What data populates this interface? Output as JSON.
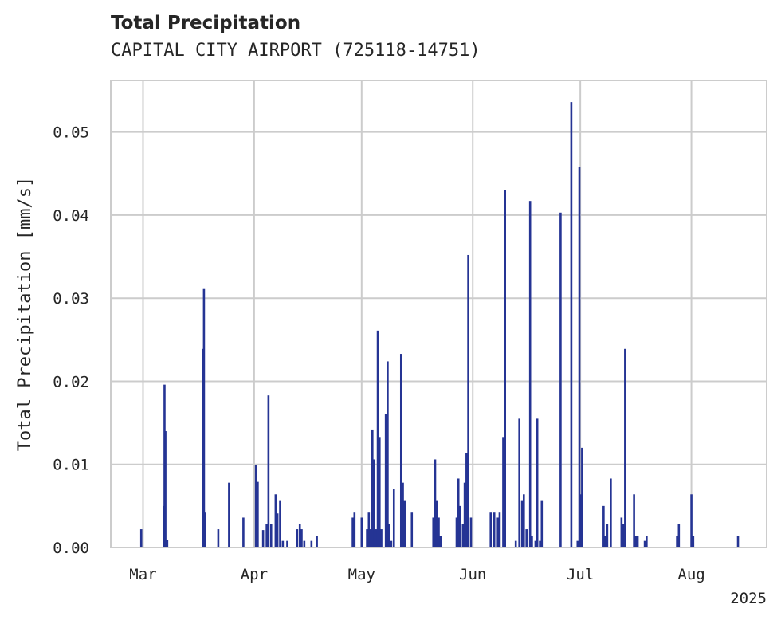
{
  "chart_data": {
    "type": "bar",
    "title": "Total Precipitation",
    "subtitle": "CAPITAL CITY AIRPORT (725118-14751)",
    "xlabel": "",
    "ylabel": "Total Precipitation [mm/s]",
    "xlim": [
      "2025-02-20",
      "2025-08-22"
    ],
    "ylim": [
      0,
      0.0562
    ],
    "yticks": [
      0.0,
      0.01,
      0.02,
      0.03,
      0.04,
      0.05
    ],
    "ytick_labels": [
      "0.00",
      "0.01",
      "0.02",
      "0.03",
      "0.04",
      "0.05"
    ],
    "xticks": [
      "2025-03-01",
      "2025-04-01",
      "2025-05-01",
      "2025-06-01",
      "2025-07-01",
      "2025-08-01"
    ],
    "xtick_labels": [
      "Mar",
      "Apr",
      "May",
      "Jun",
      "Jul",
      "Aug"
    ],
    "xaxis_offset_label": "2025",
    "grid": true,
    "bar_color": "#253494",
    "series": [
      {
        "x": [
          "2025-02-28T12:00",
          "2025-03-06T18:00",
          "2025-03-07T00:00",
          "2025-03-07T06:00",
          "2025-03-07T18:00",
          "2025-03-17T18:00",
          "2025-03-18T00:00",
          "2025-03-18T06:00",
          "2025-03-22T00:00",
          "2025-03-25T00:00",
          "2025-03-29T00:00",
          "2025-04-01T12:00",
          "2025-04-02T00:00",
          "2025-04-03T12:00",
          "2025-04-04T12:00",
          "2025-04-05T00:00",
          "2025-04-05T18:00",
          "2025-04-07T00:00",
          "2025-04-07T12:00",
          "2025-04-08T06:00",
          "2025-04-09T00:00",
          "2025-04-10T06:00",
          "2025-04-13T00:00",
          "2025-04-13T18:00",
          "2025-04-14T06:00",
          "2025-04-15T00:00",
          "2025-04-17T00:00",
          "2025-04-18T12:00",
          "2025-04-28T12:00",
          "2025-04-29T00:00",
          "2025-05-01T00:00",
          "2025-05-02T12:00",
          "2025-05-03T00:00",
          "2025-05-03T12:00",
          "2025-05-04T00:00",
          "2025-05-04T12:00",
          "2025-05-05T00:00",
          "2025-05-05T12:00",
          "2025-05-06T00:00",
          "2025-05-06T12:00",
          "2025-05-07T18:00",
          "2025-05-08T06:00",
          "2025-05-08T18:00",
          "2025-05-09T06:00",
          "2025-05-10T00:00",
          "2025-05-12T00:00",
          "2025-05-12T12:00",
          "2025-05-13T00:00",
          "2025-05-15T00:00",
          "2025-05-21T00:00",
          "2025-05-21T12:00",
          "2025-05-22T00:00",
          "2025-05-22T12:00",
          "2025-05-23T00:00",
          "2025-05-27T12:00",
          "2025-05-28T00:00",
          "2025-05-28T12:00",
          "2025-05-29T06:00",
          "2025-05-29T18:00",
          "2025-05-30T06:00",
          "2025-05-30T18:00",
          "2025-05-31T12:00",
          "2025-06-06T00:00",
          "2025-06-07T00:00",
          "2025-06-08T00:00",
          "2025-06-08T12:00",
          "2025-06-09T12:00",
          "2025-06-10T00:00",
          "2025-06-13T00:00",
          "2025-06-14T00:00",
          "2025-06-14T18:00",
          "2025-06-15T06:00",
          "2025-06-16T00:00",
          "2025-06-17T00:00",
          "2025-06-17T12:00",
          "2025-06-18T12:00",
          "2025-06-19T00:00",
          "2025-06-19T18:00",
          "2025-06-20T06:00",
          "2025-06-25T12:00",
          "2025-06-28T12:00",
          "2025-06-30T06:00",
          "2025-06-30T18:00",
          "2025-07-01T06:00",
          "2025-07-01T12:00",
          "2025-07-07T12:00",
          "2025-07-08T00:00",
          "2025-07-08T12:00",
          "2025-07-09T12:00",
          "2025-07-12T12:00",
          "2025-07-13T00:00",
          "2025-07-13T12:00",
          "2025-07-16T00:00",
          "2025-07-16T12:00",
          "2025-07-17T00:00",
          "2025-07-19T00:00",
          "2025-07-19T12:00",
          "2025-07-28T00:00",
          "2025-07-28T12:00",
          "2025-08-01T00:00",
          "2025-08-01T12:00",
          "2025-08-14T00:00"
        ],
        "values": [
          0.0022,
          0.005,
          0.0196,
          0.014,
          0.0009,
          0.0239,
          0.0311,
          0.0042,
          0.0022,
          0.0078,
          0.0036,
          0.0099,
          0.0079,
          0.0021,
          0.0028,
          0.0183,
          0.0028,
          0.0064,
          0.0041,
          0.0056,
          0.0008,
          0.0008,
          0.0022,
          0.0028,
          0.0022,
          0.0008,
          0.0008,
          0.0014,
          0.0036,
          0.0042,
          0.0036,
          0.0022,
          0.0042,
          0.0022,
          0.0142,
          0.0106,
          0.0022,
          0.0261,
          0.0133,
          0.0022,
          0.0161,
          0.0224,
          0.0028,
          0.0008,
          0.007,
          0.0233,
          0.0078,
          0.0056,
          0.0042,
          0.0036,
          0.0106,
          0.0056,
          0.0036,
          0.0014,
          0.0036,
          0.0083,
          0.005,
          0.0028,
          0.0078,
          0.0114,
          0.0352,
          0.0036,
          0.0042,
          0.0042,
          0.0036,
          0.0042,
          0.0133,
          0.043,
          0.0008,
          0.0155,
          0.0056,
          0.0064,
          0.0022,
          0.0417,
          0.0014,
          0.0008,
          0.0155,
          0.0008,
          0.0056,
          0.0403,
          0.0536,
          0.0008,
          0.0458,
          0.0064,
          0.012,
          0.005,
          0.0014,
          0.0028,
          0.0083,
          0.0036,
          0.0028,
          0.0239,
          0.0064,
          0.0014,
          0.0014,
          0.0008,
          0.0014,
          0.0014,
          0.0028,
          0.0064,
          0.0014,
          0.0014
        ]
      }
    ]
  }
}
